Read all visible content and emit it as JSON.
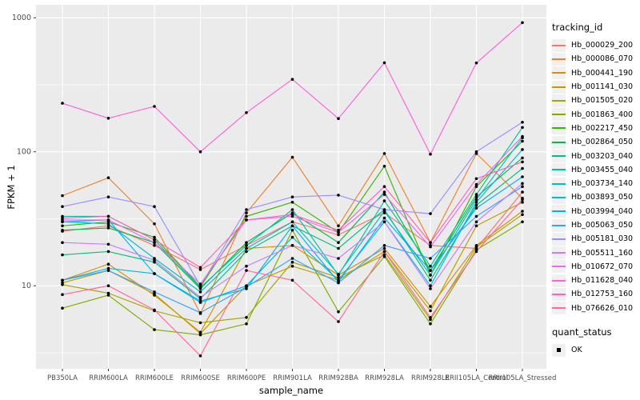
{
  "chart_data": {
    "type": "line",
    "title": "",
    "xlabel": "sample_name",
    "ylabel": "FPKM + 1",
    "y_scale": "log10",
    "ylim": [
      2.4,
      1250
    ],
    "y_ticks": [
      10,
      100,
      1000
    ],
    "y_tick_labels": [
      "10",
      "100",
      "1000"
    ],
    "y_minor_ticks": [
      3.162,
      31.62,
      316.2
    ],
    "grid": true,
    "panel_bg": "#EBEBEB",
    "grid_color": "#FFFFFF",
    "tick_label_color": "#4D4D4D",
    "point_color": "#000000",
    "legend_position": "right",
    "legend_title": "tracking_id",
    "point_legend": {
      "title": "quant_status",
      "label": "OK"
    },
    "categories": [
      "PB350LA",
      "RRIM600LA",
      "RRIM600LE",
      "RRIM600SE",
      "RRIM600PE",
      "RRIM901LA",
      "RRIM928BA",
      "RRIM928LA",
      "RRIM928LE",
      "RRII105LA_Control",
      "RRII105LA_Stressed"
    ],
    "series": [
      {
        "name": "Hb_000029_200",
        "color": "#F8766D",
        "values": [
          25.5,
          28,
          20,
          13.2,
          20,
          30,
          24,
          35,
          20,
          19,
          50
        ]
      },
      {
        "name": "Hb_000086_070",
        "color": "#EA8331",
        "values": [
          47,
          64,
          29,
          6.2,
          35,
          91,
          28,
          97,
          21,
          97,
          45
        ]
      },
      {
        "name": "Hb_000441_190",
        "color": "#D89000",
        "values": [
          11,
          14.5,
          8.5,
          4.5,
          19,
          20,
          12,
          19,
          7,
          20,
          36
        ]
      },
      {
        "name": "Hb_001141_030",
        "color": "#C09B00",
        "values": [
          10.5,
          13,
          8.7,
          4.4,
          10,
          14,
          11,
          18,
          6.5,
          28,
          42
        ]
      },
      {
        "name": "Hb_001505_020",
        "color": "#A3A500",
        "values": [
          10.2,
          8.8,
          6.5,
          5.3,
          5.8,
          15,
          11.5,
          17,
          5.6,
          19.5,
          34
        ]
      },
      {
        "name": "Hb_001863_400",
        "color": "#7CAE00",
        "values": [
          6.8,
          8.5,
          4.7,
          4.3,
          5.2,
          26,
          6.4,
          16.5,
          5.2,
          18.5,
          30
        ]
      },
      {
        "name": "Hb_002217_450",
        "color": "#39B600",
        "values": [
          28,
          30,
          23,
          9.8,
          33,
          42,
          25,
          78,
          12,
          55,
          120
        ]
      },
      {
        "name": "Hb_002864_050",
        "color": "#00BB4E",
        "values": [
          26,
          27,
          21,
          9.5,
          21,
          35,
          21,
          50,
          13,
          46,
          90
        ]
      },
      {
        "name": "Hb_003203_040",
        "color": "#00BF7D",
        "values": [
          17,
          18,
          15,
          8,
          18,
          28,
          19,
          37,
          11,
          40,
          75
        ]
      },
      {
        "name": "Hb_003455_040",
        "color": "#00C1A3",
        "values": [
          33,
          33,
          22,
          9.7,
          20,
          37,
          12,
          43,
          14,
          48,
          152
        ]
      },
      {
        "name": "Hb_003734_140",
        "color": "#00BFC4",
        "values": [
          30,
          29,
          16,
          9,
          19,
          30,
          12.2,
          36,
          12,
          44,
          127
        ]
      },
      {
        "name": "Hb_003893_050",
        "color": "#00BAE0",
        "values": [
          11,
          13.5,
          12.3,
          7.5,
          10,
          23,
          11,
          30,
          10,
          42,
          104
        ]
      },
      {
        "name": "Hb_003994_040",
        "color": "#00B0F6",
        "values": [
          30,
          31,
          12.3,
          7.7,
          9.5,
          28,
          10.7,
          32,
          13,
          38,
          65
        ]
      },
      {
        "name": "Hb_005063_050",
        "color": "#35A2FF",
        "values": [
          11,
          13,
          9,
          6.3,
          9.8,
          16,
          10.5,
          20,
          16,
          33,
          55
        ]
      },
      {
        "name": "Hb_005181_030",
        "color": "#9590FF",
        "values": [
          39,
          46,
          39,
          10,
          37,
          46,
          47.5,
          37,
          34.5,
          100,
          166
        ]
      },
      {
        "name": "Hb_005511_160",
        "color": "#C77CFF",
        "values": [
          21,
          20.4,
          15.5,
          8.2,
          14,
          20,
          16,
          30,
          9.5,
          30,
          58
        ]
      },
      {
        "name": "Hb_010672_070",
        "color": "#E76BF3",
        "values": [
          31,
          31,
          21,
          10.3,
          31,
          33,
          25,
          48,
          19.5,
          57,
          130
        ]
      },
      {
        "name": "Hb_011628_040",
        "color": "#FA62DB",
        "values": [
          230,
          178,
          218,
          100,
          196,
          347,
          177,
          462,
          96,
          460,
          920
        ]
      },
      {
        "name": "Hb_012753_160",
        "color": "#FF62BC",
        "values": [
          32,
          33,
          22,
          13.7,
          31,
          34,
          26,
          55,
          21,
          63,
          84
        ]
      },
      {
        "name": "Hb_076626_010",
        "color": "#FF6A98",
        "values": [
          8.6,
          10,
          6.6,
          3.0,
          13,
          11,
          5.4,
          18,
          5.8,
          18,
          44
        ]
      }
    ]
  }
}
